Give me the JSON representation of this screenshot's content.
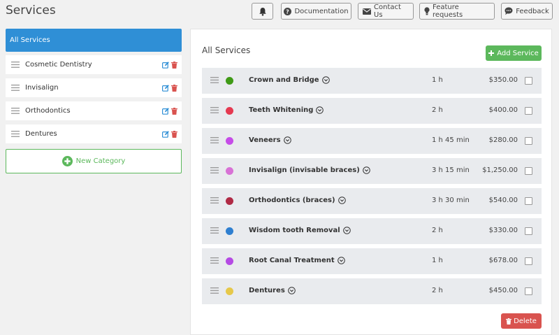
{
  "page": {
    "title": "Services"
  },
  "topbar": {
    "documentation": "Documentation",
    "contact": "Contact Us",
    "feature": "Feature requests",
    "feedback": "Feedback"
  },
  "categories": {
    "all_label": "All Services",
    "items": [
      {
        "label": "Cosmetic Dentistry"
      },
      {
        "label": "Invisalign"
      },
      {
        "label": "Orthodontics"
      },
      {
        "label": "Dentures"
      }
    ],
    "new_label": "New Category"
  },
  "services_panel": {
    "title": "All Services",
    "add_label": "Add Service",
    "delete_label": "Delete",
    "items": [
      {
        "name": "Crown and Bridge",
        "duration": "1 h",
        "price": "$350.00",
        "color": "#3f9a16"
      },
      {
        "name": "Teeth Whitening",
        "duration": "2 h",
        "price": "$400.00",
        "color": "#e53950"
      },
      {
        "name": "Veneers",
        "duration": "1 h 45 min",
        "price": "$280.00",
        "color": "#c64ce8"
      },
      {
        "name": "Invisalign (invisable braces)",
        "duration": "3 h 15 min",
        "price": "$1,250.00",
        "color": "#d872d6"
      },
      {
        "name": "Orthodontics (braces)",
        "duration": "3 h 30 min",
        "price": "$540.00",
        "color": "#b02a45"
      },
      {
        "name": "Wisdom tooth Removal",
        "duration": "2 h",
        "price": "$330.00",
        "color": "#2f7fd0"
      },
      {
        "name": "Root Canal Treatment",
        "duration": "1 h",
        "price": "$678.00",
        "color": "#b54ae4"
      },
      {
        "name": "Dentures",
        "duration": "2 h",
        "price": "$450.00",
        "color": "#e6c84a"
      }
    ]
  },
  "colors": {
    "primary": "#2f8fd6",
    "success": "#5cb85c",
    "danger": "#d9534f",
    "edit": "#2f8fd6",
    "trash": "#d9534f"
  }
}
